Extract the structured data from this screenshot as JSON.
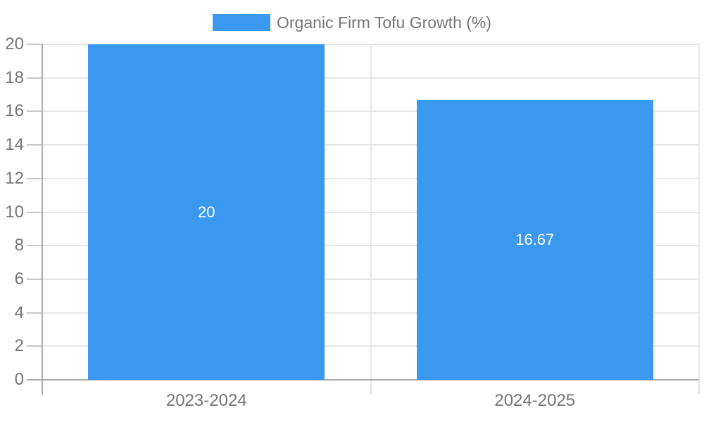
{
  "chart_data": {
    "type": "bar",
    "title": "Organic Firm Tofu Growth (%)",
    "legend": {
      "label": "Organic Firm Tofu Growth (%)",
      "position": "top"
    },
    "categories": [
      "2023-2024",
      "2024-2025"
    ],
    "series": [
      {
        "name": "Organic Firm Tofu Growth (%)",
        "values": [
          20,
          16.67
        ],
        "value_labels": [
          "20",
          "16.67"
        ]
      }
    ],
    "xlabel": "",
    "ylabel": "",
    "ylim": [
      0,
      20
    ],
    "ytick_step": 2,
    "ytick_labels": [
      "0",
      "2",
      "4",
      "6",
      "8",
      "10",
      "12",
      "14",
      "16",
      "18",
      "20"
    ],
    "grid": true,
    "colors": {
      "bar": "#3a99ee",
      "gridline": "#e6e6e6",
      "axis": "#aaaaaa",
      "tick_mark": "#c9c9c9",
      "boundary_tick": "#e0e0e0",
      "tick_label": "#757575",
      "legend_text": "#757575",
      "value_label": "#ffffff",
      "background": "#ffffff"
    }
  }
}
